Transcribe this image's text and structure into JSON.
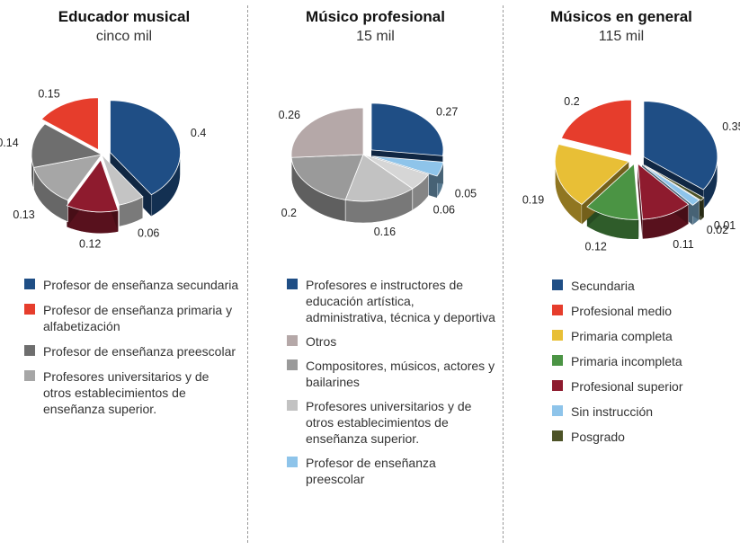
{
  "chart_data": [
    {
      "type": "pie",
      "title": "Educador musical",
      "subtitle": "cinco mil",
      "slices": [
        {
          "name": "Profesor de enseñanza secundaria",
          "value": 0.4,
          "label": "0.4",
          "color": "#1f4e85"
        },
        {
          "name": "",
          "value": 0.06,
          "label": "0.06",
          "color": "#c4c4c4"
        },
        {
          "name": "",
          "value": 0.12,
          "label": "0.12",
          "color": "#8e1b2e"
        },
        {
          "name": "Profesores universitarios y de otros establecimientos de enseñanza superior.",
          "value": 0.13,
          "label": "0.13",
          "color": "#a6a6a6"
        },
        {
          "name": "Profesor de enseñanza preescolar",
          "value": 0.14,
          "label": "0.14",
          "color": "#6e6e6e"
        },
        {
          "name": "Profesor de enseñanza primaria y alfabetización",
          "value": 0.15,
          "label": "0.15",
          "color": "#e63d2c"
        }
      ],
      "legend": [
        {
          "label": "Profesor de enseñanza secundaria",
          "color": "#1f4e85"
        },
        {
          "label": "Profesor de enseñanza primaria y alfabetización",
          "color": "#e63d2c"
        },
        {
          "label": "Profesor de enseñanza preescolar",
          "color": "#6e6e6e"
        },
        {
          "label": "Profesores universitarios y de otros establecimientos de enseñanza superior.",
          "color": "#a6a6a6"
        }
      ]
    },
    {
      "type": "pie",
      "title": "Músico profesional",
      "subtitle": "15 mil",
      "slices": [
        {
          "name": "Profesores e instructores de educación artística, administrativa, técnica y deportiva",
          "value": 0.27,
          "label": "0.27",
          "color": "#1f4e85"
        },
        {
          "name": "Profesor de enseñanza preescolar",
          "value": 0.05,
          "label": "0.05",
          "color": "#8ec4ea"
        },
        {
          "name": "",
          "value": 0.06,
          "label": "0.06",
          "color": "#d6d6d6"
        },
        {
          "name": "Profesores universitarios y de otros establecimientos de enseñanza superior.",
          "value": 0.16,
          "label": "0.16",
          "color": "#c2c2c2"
        },
        {
          "name": "Compositores, músicos, actores y bailarines",
          "value": 0.2,
          "label": "0.2",
          "color": "#9a9a9a"
        },
        {
          "name": "Otros",
          "value": 0.26,
          "label": "0.26",
          "color": "#b5a8a8"
        }
      ],
      "legend": [
        {
          "label": "Profesores e instructores de educación artística, administrativa, técnica y deportiva",
          "color": "#1f4e85"
        },
        {
          "label": "Otros",
          "color": "#b5a8a8"
        },
        {
          "label": "Compositores, músicos, actores y bailarines",
          "color": "#9a9a9a"
        },
        {
          "label": "Profesores universitarios y de otros establecimientos de enseñanza superior.",
          "color": "#c2c2c2"
        },
        {
          "label": "Profesor de enseñanza preescolar",
          "color": "#8ec4ea"
        }
      ]
    },
    {
      "type": "pie",
      "title": "Músicos en general",
      "subtitle": "115 mil",
      "slices": [
        {
          "name": "Secundaria",
          "value": 0.35,
          "label": "0.35",
          "color": "#1f4e85"
        },
        {
          "name": "Posgrado",
          "value": 0.01,
          "label": "0.01",
          "color": "#4d5327"
        },
        {
          "name": "Sin instrucción",
          "value": 0.02,
          "label": "0.02",
          "color": "#8ec4ea"
        },
        {
          "name": "Profesional superior",
          "value": 0.11,
          "label": "0.11",
          "color": "#8e1b2e"
        },
        {
          "name": "Primaria incompleta",
          "value": 0.12,
          "label": "0.12",
          "color": "#4b9444"
        },
        {
          "name": "Primaria completa",
          "value": 0.19,
          "label": "0.19",
          "color": "#e8bf36"
        },
        {
          "name": "Profesional medio",
          "value": 0.2,
          "label": "0.2",
          "color": "#e63d2c"
        }
      ],
      "legend": [
        {
          "label": "Secundaria",
          "color": "#1f4e85"
        },
        {
          "label": "Profesional medio",
          "color": "#e63d2c"
        },
        {
          "label": "Primaria completa",
          "color": "#e8bf36"
        },
        {
          "label": "Primaria incompleta",
          "color": "#4b9444"
        },
        {
          "label": "Profesional superior",
          "color": "#8e1b2e"
        },
        {
          "label": "Sin instrucción",
          "color": "#8ec4ea"
        },
        {
          "label": "Posgrado",
          "color": "#4d5327"
        }
      ]
    }
  ]
}
